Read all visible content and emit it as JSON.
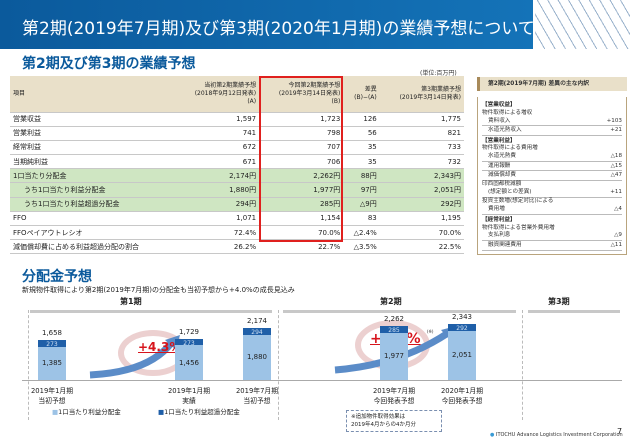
{
  "header": {
    "title": "第2期(2019年7月期)及び第3期(2020年1月期)の業績予想について"
  },
  "forecast": {
    "title": "第2期及び第3期の業績予想",
    "unit": "(単位:百万円)",
    "columns": [
      "項目",
      "当初第2期業績予想\n(2018年9月12日発表)\n(A)",
      "今回第2期業績予想\n(2019年3月14日発表)\n(B)",
      "差異\n(B)−(A)",
      "第3期業績予想\n(2019年3月14日発表)"
    ],
    "rows": [
      [
        "営業収益",
        "1,597",
        "1,723",
        "126",
        "1,775"
      ],
      [
        "営業利益",
        "741",
        "798",
        "56",
        "821"
      ],
      [
        "経常利益",
        "672",
        "707",
        "35",
        "733"
      ],
      [
        "当期純利益",
        "671",
        "706",
        "35",
        "732"
      ],
      [
        "1口当たり分配金",
        "2,174円",
        "2,262円",
        "88円",
        "2,343円"
      ],
      [
        "うち1口当たり利益分配金",
        "1,880円",
        "1,977円",
        "97円",
        "2,051円"
      ],
      [
        "うち1口当たり利益超過分配金",
        "294円",
        "285円",
        "△9円",
        "292円"
      ],
      [
        "FFO",
        "1,071",
        "1,154",
        "83",
        "1,195"
      ],
      [
        "FFOペイアウトレシオ",
        "72.4%",
        "70.0%",
        "△2.4%",
        "70.0%"
      ],
      [
        "減価償却費に占める利益超過分配の割合",
        "26.2%",
        "22.7%",
        "△3.5%",
        "22.5%"
      ]
    ]
  },
  "panel": {
    "title": "第2期(2019年7月期) 差異の主な内訳",
    "items": [
      {
        "t": "h",
        "l": "【営業収益】"
      },
      {
        "t": "n",
        "l": "物件取得による増収"
      },
      {
        "t": "i",
        "l": "賃料収入",
        "v": "+103"
      },
      {
        "t": "i",
        "l": "水道光熱収入",
        "v": "+21"
      },
      {
        "t": "h",
        "l": "【営業利益】"
      },
      {
        "t": "n",
        "l": "物件取得による費用増"
      },
      {
        "t": "i",
        "l": "水道光熱費",
        "v": "△18"
      },
      {
        "t": "i",
        "l": "運用報酬",
        "v": "△15"
      },
      {
        "t": "i",
        "l": "減価償却費",
        "v": "△47"
      },
      {
        "t": "n",
        "l": "印西固都税減額"
      },
      {
        "t": "i",
        "l": "(想定額との差異)",
        "v": "+11"
      },
      {
        "t": "n",
        "l": "投資主数増(想定対比)による"
      },
      {
        "t": "i",
        "l": "費用増",
        "v": "△4"
      },
      {
        "t": "h",
        "l": "【経常利益】"
      },
      {
        "t": "n",
        "l": "物件取得による営業外費用増"
      },
      {
        "t": "i",
        "l": "支払利息",
        "v": "△9"
      },
      {
        "t": "i",
        "l": "融資関連費用",
        "v": "△11"
      }
    ]
  },
  "dist": {
    "title": "分配金予想",
    "subtitle": "新規物件取得により第2期(2019年7月期)の分配金も当初予想から+4.0%の成長見込み",
    "periods": [
      "第1期",
      "第2期",
      "第3期"
    ],
    "growth": [
      "+4.3%",
      "+4.0%"
    ],
    "growth_note_mark": "(※)",
    "note": "※追加物件取得効果は\n2019年4月からの4か月分",
    "legend": [
      "1口当たり利益分配金",
      "1口当たり利益超過分配金"
    ],
    "colors": {
      "profit": "#9dc3e6",
      "excess": "#1f5fa8"
    }
  },
  "chart_data": {
    "type": "bar",
    "stacked": true,
    "categories": [
      "2019年1月期\n当初予想",
      "2019年1月期\n実績",
      "2019年7月期\n当初予想",
      "2019年7月期\n今回発表予想",
      "2020年1月期\n今回発表予想"
    ],
    "series": [
      {
        "name": "1口当たり利益分配金",
        "values": [
          1385,
          1456,
          1880,
          1977,
          2051
        ]
      },
      {
        "name": "1口当たり利益超過分配金",
        "values": [
          273,
          273,
          294,
          285,
          292
        ]
      }
    ],
    "totals": [
      1658,
      1729,
      2174,
      2262,
      2343
    ],
    "labels": {
      "profit": [
        "1,385",
        "1,456",
        "1,880",
        "1,977",
        "2,051"
      ],
      "excess": [
        "273",
        "273",
        "294",
        "285",
        "292"
      ],
      "totals": [
        "1,658",
        "1,729",
        "2,174",
        "2,262",
        "2,343"
      ]
    }
  },
  "footer": {
    "company": "ITOCHU Advance Logistics Investment Corporation",
    "page": "7"
  }
}
